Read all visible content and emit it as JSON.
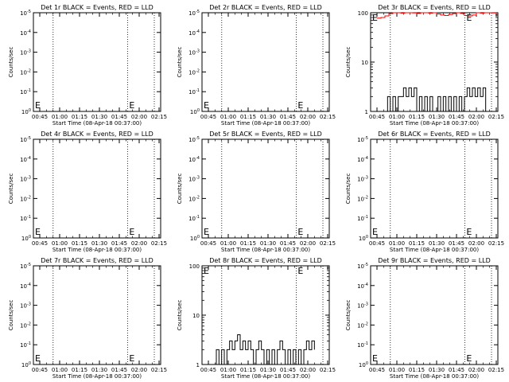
{
  "chart_data": [
    {
      "type": "line",
      "title": "Det 1r BLACK = Events, RED = LLD",
      "xlabel": "Start Time (08-Apr-18 00:37:00)",
      "ylabel": "Counts/sec",
      "yscale": "log",
      "y_tick_labels": [
        "10^0",
        "10^-1",
        "10^-2",
        "10^-3",
        "10^-4",
        "10^-5"
      ],
      "x_tick_labels": [
        "00:45",
        "01:00",
        "01:15",
        "01:30",
        "01:45",
        "02:00",
        "02:15"
      ],
      "markers": [
        "E",
        "E"
      ],
      "series": []
    },
    {
      "type": "line",
      "title": "Det 2r BLACK = Events, RED = LLD",
      "xlabel": "Start Time (08-Apr-18 00:37:00)",
      "ylabel": "Counts/sec",
      "yscale": "log",
      "y_tick_labels": [
        "10^0",
        "10^-1",
        "10^-2",
        "10^-3",
        "10^-4",
        "10^-5"
      ],
      "x_tick_labels": [
        "00:45",
        "01:00",
        "01:15",
        "01:30",
        "01:45",
        "02:00",
        "02:15"
      ],
      "markers": [
        "E",
        "E"
      ],
      "series": []
    },
    {
      "type": "line",
      "title": "Det 3r BLACK = Events, RED = LLD",
      "xlabel": "Start Time (08-Apr-18 00:37:00)",
      "ylabel": "Counts/sec",
      "yscale": "log",
      "y_tick_labels": [
        "1",
        "10",
        "100"
      ],
      "x_tick_labels": [
        "00:45",
        "01:00",
        "01:15",
        "01:30",
        "01:45",
        "02:00",
        "02:15"
      ],
      "markers": [
        "E",
        "E"
      ],
      "series": [
        {
          "color": "#ff0000",
          "x": [
            0,
            3,
            6,
            9,
            12,
            15,
            18,
            21,
            24,
            27,
            30,
            33,
            36,
            39,
            42,
            45,
            48,
            51,
            54,
            57,
            60,
            63,
            66,
            69,
            72,
            75,
            78,
            81,
            84,
            87,
            90
          ],
          "values": [
            78,
            80,
            86,
            96,
            100,
            100,
            98,
            100,
            100,
            99,
            97,
            100,
            100,
            98,
            100,
            94,
            90,
            88,
            92,
            96,
            100,
            97,
            88,
            86,
            90,
            100,
            98,
            100,
            100,
            99,
            100
          ]
        },
        {
          "color": "#000000",
          "x": [
            6,
            8,
            10,
            12,
            14,
            16,
            18,
            20,
            22,
            24,
            26,
            28,
            30,
            32,
            34,
            36,
            38,
            40,
            42,
            44,
            46,
            48,
            50,
            52,
            54,
            56,
            58,
            60,
            62,
            64,
            66,
            68,
            70,
            72,
            74,
            76,
            78,
            80,
            82
          ],
          "values": [
            1,
            2,
            1,
            2,
            1,
            2,
            2,
            3,
            2,
            3,
            2,
            3,
            1,
            2,
            1,
            2,
            1,
            2,
            1,
            1,
            2,
            1,
            2,
            1,
            2,
            1,
            2,
            1,
            2,
            1,
            2,
            3,
            2,
            3,
            2,
            3,
            2,
            3,
            1
          ]
        }
      ]
    },
    {
      "type": "line",
      "title": "Det 4r BLACK = Events, RED = LLD",
      "xlabel": "Start Time (08-Apr-18 00:37:00)",
      "ylabel": "Counts/sec",
      "yscale": "log",
      "y_tick_labels": [
        "10^0",
        "10^-1",
        "10^-2",
        "10^-3",
        "10^-4",
        "10^-5"
      ],
      "x_tick_labels": [
        "00:45",
        "01:00",
        "01:15",
        "01:30",
        "01:45",
        "02:00",
        "02:15"
      ],
      "markers": [
        "E",
        "E"
      ],
      "series": []
    },
    {
      "type": "line",
      "title": "Det 5r BLACK = Events, RED = LLD",
      "xlabel": "Start Time (08-Apr-18 00:37:00)",
      "ylabel": "Counts/sec",
      "yscale": "log",
      "y_tick_labels": [
        "10^0",
        "10^-1",
        "10^-2",
        "10^-3",
        "10^-4",
        "10^-5"
      ],
      "x_tick_labels": [
        "00:45",
        "01:00",
        "01:15",
        "01:30",
        "01:45",
        "02:00",
        "02:15"
      ],
      "markers": [
        "E",
        "E"
      ],
      "series": []
    },
    {
      "type": "line",
      "title": "Det 6r BLACK = Events, RED = LLD",
      "xlabel": "Start Time (08-Apr-18 00:37:00)",
      "ylabel": "Counts/sec",
      "yscale": "log",
      "y_tick_labels": [
        "10^0",
        "10^-1",
        "10^-2",
        "10^-3",
        "10^-4",
        "10^-5"
      ],
      "x_tick_labels": [
        "00:45",
        "01:00",
        "01:15",
        "01:30",
        "01:45",
        "02:00",
        "02:15"
      ],
      "markers": [
        "E",
        "E"
      ],
      "series": []
    },
    {
      "type": "line",
      "title": "Det 7r BLACK = Events, RED = LLD",
      "xlabel": "Start Time (08-Apr-18 00:37:00)",
      "ylabel": "Counts/sec",
      "yscale": "log",
      "y_tick_labels": [
        "10^0",
        "10^-1",
        "10^-2",
        "10^-3",
        "10^-4",
        "10^-5"
      ],
      "x_tick_labels": [
        "00:45",
        "01:00",
        "01:15",
        "01:30",
        "01:45",
        "02:00",
        "02:15"
      ],
      "markers": [
        "E",
        "E"
      ],
      "series": []
    },
    {
      "type": "line",
      "title": "Det 8r BLACK = Events, RED = LLD",
      "xlabel": "Start Time (08-Apr-18 00:37:00)",
      "ylabel": "Counts/sec",
      "yscale": "log",
      "y_tick_labels": [
        "1",
        "10",
        "100"
      ],
      "x_tick_labels": [
        "00:45",
        "01:00",
        "01:15",
        "01:30",
        "01:45",
        "02:00",
        "02:15"
      ],
      "markers": [
        "E",
        "E"
      ],
      "series": [
        {
          "color": "#000000",
          "x": [
            4,
            6,
            8,
            10,
            12,
            14,
            16,
            18,
            20,
            22,
            24,
            26,
            28,
            30,
            32,
            34,
            36,
            38,
            40,
            42,
            44,
            46,
            48,
            50,
            52,
            54,
            56,
            58,
            60,
            62,
            64,
            66,
            68,
            70,
            72,
            74,
            76,
            78,
            80
          ],
          "values": [
            1,
            2,
            1,
            2,
            1,
            2,
            3,
            2,
            3,
            4,
            2,
            3,
            2,
            3,
            2,
            1,
            2,
            3,
            2,
            1,
            2,
            1,
            2,
            1,
            2,
            3,
            2,
            1,
            2,
            1,
            2,
            1,
            2,
            1,
            2,
            3,
            2,
            3,
            2
          ]
        }
      ]
    },
    {
      "type": "line",
      "title": "Det 9r BLACK = Events, RED = LLD",
      "xlabel": "Start Time (08-Apr-18 00:37:00)",
      "ylabel": "Counts/sec",
      "yscale": "log",
      "y_tick_labels": [
        "10^0",
        "10^-1",
        "10^-2",
        "10^-3",
        "10^-4",
        "10^-5"
      ],
      "x_tick_labels": [
        "00:45",
        "01:00",
        "01:15",
        "01:30",
        "01:45",
        "02:00",
        "02:15"
      ],
      "markers": [
        "E",
        "E"
      ],
      "series": []
    }
  ]
}
